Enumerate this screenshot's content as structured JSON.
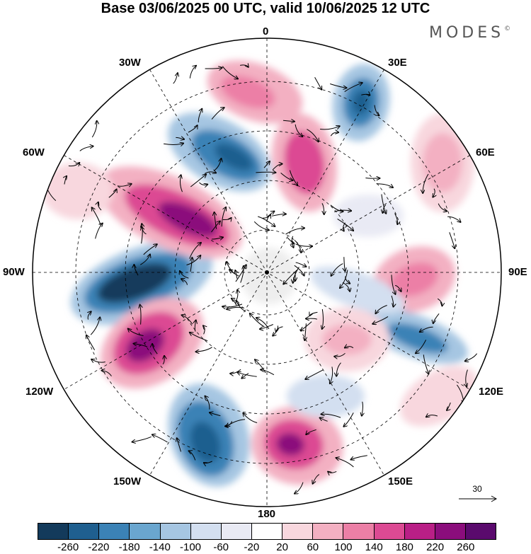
{
  "title": "Base 03/06/2025 00 UTC, valid 10/06/2025 12 UTC",
  "logo": {
    "text": "MODES",
    "mark": "©"
  },
  "map": {
    "projection": "polar stereographic (south pole)",
    "longitude_labels": {
      "lon_0": "0",
      "lon_30e": "30E",
      "lon_60e": "60E",
      "lon_90e": "90E",
      "lon_120e": "120E",
      "lon_150e": "150E",
      "lon_180": "180",
      "lon_150w": "150W",
      "lon_120w": "120W",
      "lon_90w": "90W",
      "lon_60w": "60W",
      "lon_30w": "30W"
    },
    "reference_vector_value": "30"
  },
  "colorbar": {
    "ticks": [
      "-260",
      "-220",
      "-180",
      "-140",
      "-100",
      "-60",
      "-20",
      "20",
      "60",
      "100",
      "140",
      "180",
      "220",
      "260"
    ],
    "colors": [
      "#133a5b",
      "#1f5f8f",
      "#3b82b6",
      "#6aa6cf",
      "#a6c6e2",
      "#d3dff0",
      "#e9eaf4",
      "#ffffff",
      "#f8d7de",
      "#f3b0c2",
      "#ec7fa6",
      "#dc4a93",
      "#b91f86",
      "#8b0d7c",
      "#5a0a6d"
    ]
  }
}
